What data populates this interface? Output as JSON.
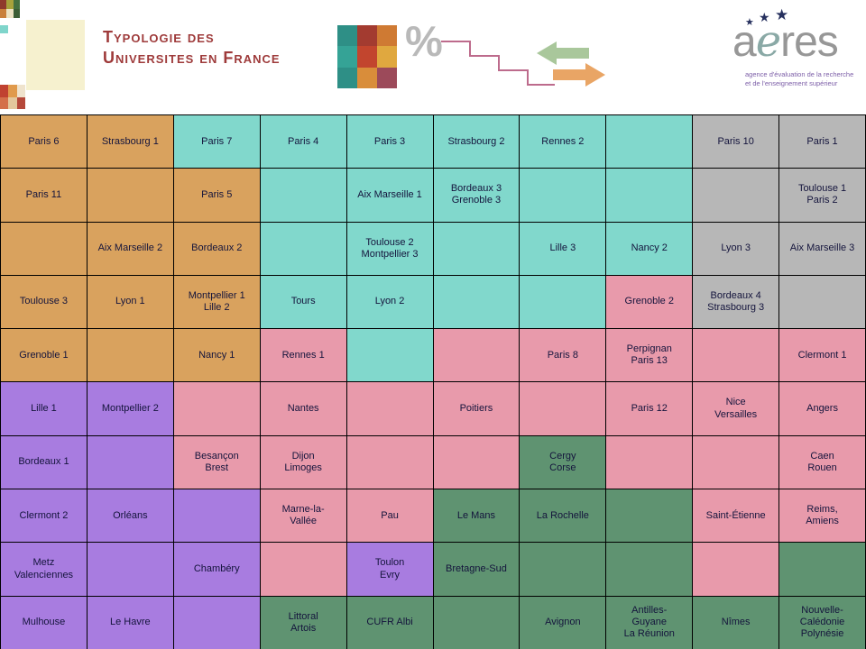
{
  "title": {
    "line1": "Typologie des",
    "line2": "Universites en France"
  },
  "decor": {
    "percent_symbol": "%"
  },
  "logo": {
    "part1": "a",
    "part2": "e",
    "part3": "res",
    "star": "★",
    "tagline_line1": "agence d'évaluation de la recherche",
    "tagline_line2": "et de l'enseignement supérieur"
  },
  "palette": {
    "orange": "#d9a25e",
    "teal": "#81d8cc",
    "gray": "#b7b7b7",
    "pink": "#e89aab",
    "purple": "#a87ce0",
    "green": "#5f9371"
  },
  "grid": {
    "rows": [
      {
        "cells": [
          {
            "label": "Paris 6",
            "color": "orange"
          },
          {
            "label": "Strasbourg 1",
            "color": "orange"
          },
          {
            "label": "Paris 7",
            "color": "teal"
          },
          {
            "label": "Paris 4",
            "color": "teal"
          },
          {
            "label": "Paris 3",
            "color": "teal"
          },
          {
            "label": "Strasbourg 2",
            "color": "teal"
          },
          {
            "label": "Rennes 2",
            "color": "teal"
          },
          {
            "label": "",
            "color": "teal"
          },
          {
            "label": "Paris 10",
            "color": "gray"
          },
          {
            "label": "Paris 1",
            "color": "gray"
          }
        ]
      },
      {
        "cells": [
          {
            "label": "Paris 11",
            "color": "orange"
          },
          {
            "label": "",
            "color": "orange"
          },
          {
            "label": "Paris 5",
            "color": "orange"
          },
          {
            "label": "",
            "color": "teal"
          },
          {
            "label": "Aix Marseille 1",
            "color": "teal"
          },
          {
            "label": "Bordeaux 3\nGrenoble 3",
            "color": "teal"
          },
          {
            "label": "",
            "color": "teal"
          },
          {
            "label": "",
            "color": "teal"
          },
          {
            "label": "",
            "color": "gray"
          },
          {
            "label": "Toulouse 1\nParis 2",
            "color": "gray"
          }
        ]
      },
      {
        "cells": [
          {
            "label": "",
            "color": "orange"
          },
          {
            "label": "Aix Marseille 2",
            "color": "orange"
          },
          {
            "label": "Bordeaux 2",
            "color": "orange"
          },
          {
            "label": "",
            "color": "teal"
          },
          {
            "label": "Toulouse 2\nMontpellier 3",
            "color": "teal"
          },
          {
            "label": "",
            "color": "teal"
          },
          {
            "label": "Lille 3",
            "color": "teal"
          },
          {
            "label": "Nancy 2",
            "color": "teal"
          },
          {
            "label": "Lyon 3",
            "color": "gray"
          },
          {
            "label": "Aix Marseille 3",
            "color": "gray"
          }
        ]
      },
      {
        "cells": [
          {
            "label": "Toulouse 3",
            "color": "orange"
          },
          {
            "label": "Lyon 1",
            "color": "orange"
          },
          {
            "label": "Montpellier 1\nLille 2",
            "color": "orange"
          },
          {
            "label": "Tours",
            "color": "teal"
          },
          {
            "label": "Lyon 2",
            "color": "teal"
          },
          {
            "label": "",
            "color": "teal"
          },
          {
            "label": "",
            "color": "teal"
          },
          {
            "label": "Grenoble 2",
            "color": "pink"
          },
          {
            "label": "Bordeaux 4\nStrasbourg 3",
            "color": "gray"
          },
          {
            "label": "",
            "color": "gray"
          }
        ]
      },
      {
        "cells": [
          {
            "label": "Grenoble 1",
            "color": "orange"
          },
          {
            "label": "",
            "color": "orange"
          },
          {
            "label": "Nancy 1",
            "color": "orange"
          },
          {
            "label": "Rennes 1",
            "color": "pink"
          },
          {
            "label": "",
            "color": "teal"
          },
          {
            "label": "",
            "color": "pink"
          },
          {
            "label": "Paris 8",
            "color": "pink"
          },
          {
            "label": "Perpignan\nParis 13",
            "color": "pink"
          },
          {
            "label": "",
            "color": "pink"
          },
          {
            "label": "Clermont 1",
            "color": "pink"
          }
        ]
      },
      {
        "cells": [
          {
            "label": "Lille 1",
            "color": "purple"
          },
          {
            "label": "Montpellier 2",
            "color": "purple"
          },
          {
            "label": "",
            "color": "pink"
          },
          {
            "label": "Nantes",
            "color": "pink"
          },
          {
            "label": "",
            "color": "pink"
          },
          {
            "label": "Poitiers",
            "color": "pink"
          },
          {
            "label": "",
            "color": "pink"
          },
          {
            "label": "Paris 12",
            "color": "pink"
          },
          {
            "label": "Nice\nVersailles",
            "color": "pink"
          },
          {
            "label": "Angers",
            "color": "pink"
          }
        ]
      },
      {
        "cells": [
          {
            "label": "Bordeaux 1",
            "color": "purple"
          },
          {
            "label": "",
            "color": "purple"
          },
          {
            "label": "Besançon\nBrest",
            "color": "pink"
          },
          {
            "label": "Dijon\nLimoges",
            "color": "pink"
          },
          {
            "label": "",
            "color": "pink"
          },
          {
            "label": "",
            "color": "pink"
          },
          {
            "label": "Cergy\nCorse",
            "color": "green"
          },
          {
            "label": "",
            "color": "pink"
          },
          {
            "label": "",
            "color": "pink"
          },
          {
            "label": "Caen\nRouen",
            "color": "pink"
          }
        ]
      },
      {
        "cells": [
          {
            "label": "Clermont 2",
            "color": "purple"
          },
          {
            "label": "Orléans",
            "color": "purple"
          },
          {
            "label": "",
            "color": "purple"
          },
          {
            "label": "Marne-la-\nVallée",
            "color": "pink"
          },
          {
            "label": "Pau",
            "color": "pink"
          },
          {
            "label": "Le Mans",
            "color": "green"
          },
          {
            "label": "La Rochelle",
            "color": "green"
          },
          {
            "label": "",
            "color": "green"
          },
          {
            "label": "Saint-Étienne",
            "color": "pink"
          },
          {
            "label": "Reims,\nAmiens",
            "color": "pink"
          }
        ]
      },
      {
        "cells": [
          {
            "label": "Metz\nValenciennes",
            "color": "purple"
          },
          {
            "label": "",
            "color": "purple"
          },
          {
            "label": "Chambéry",
            "color": "purple"
          },
          {
            "label": "",
            "color": "pink"
          },
          {
            "label": "Toulon\nEvry",
            "color": "purple"
          },
          {
            "label": "Bretagne-Sud",
            "color": "green"
          },
          {
            "label": "",
            "color": "green"
          },
          {
            "label": "",
            "color": "green"
          },
          {
            "label": "",
            "color": "pink"
          },
          {
            "label": "",
            "color": "green"
          }
        ]
      },
      {
        "cells": [
          {
            "label": "Mulhouse",
            "color": "purple"
          },
          {
            "label": "Le Havre",
            "color": "purple"
          },
          {
            "label": "",
            "color": "purple"
          },
          {
            "label": "Littoral\nArtois",
            "color": "green"
          },
          {
            "label": "CUFR Albi",
            "color": "green"
          },
          {
            "label": "",
            "color": "green"
          },
          {
            "label": "Avignon",
            "color": "green"
          },
          {
            "label": "Antilles-\nGuyane\nLa Réunion",
            "color": "green"
          },
          {
            "label": "Nîmes",
            "color": "green"
          },
          {
            "label": "Nouvelle-\nCalédonie\nPolynésie",
            "color": "green"
          }
        ]
      }
    ]
  }
}
